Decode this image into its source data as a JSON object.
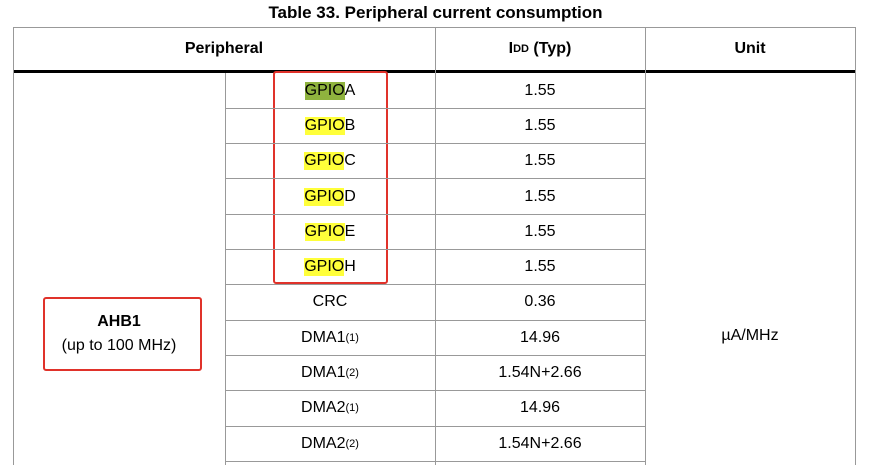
{
  "title": "Table 33. Peripheral current consumption",
  "header": {
    "peripheral": "Peripheral",
    "idd": {
      "main": "I",
      "sub": "DD",
      "rest": " (Typ)"
    },
    "unit": "Unit"
  },
  "group": {
    "name": "AHB1",
    "note": "(up to 100 MHz)"
  },
  "unit": "µA/MHz",
  "rows": [
    {
      "highlight": "GPIO",
      "text": "A",
      "value": "1.55"
    },
    {
      "highlight": "GPIO",
      "text": "B",
      "value": "1.55"
    },
    {
      "highlight": "GPIO",
      "text": "C",
      "value": "1.55"
    },
    {
      "highlight": "GPIO",
      "text": "D",
      "value": "1.55"
    },
    {
      "highlight": "GPIO",
      "text": "E",
      "value": "1.55"
    },
    {
      "highlight": "GPIO",
      "text": "H",
      "value": "1.55"
    },
    {
      "text": "CRC",
      "value": "0.36"
    },
    {
      "text": "DMA1",
      "note": "(1)",
      "value": "14.96"
    },
    {
      "text": "DMA1",
      "note": "(2)",
      "value": "1.54N+2.66"
    },
    {
      "text": "DMA2",
      "note": "(1)",
      "value": "14.96"
    },
    {
      "text": "DMA2",
      "note": "(2)",
      "value": "1.54N+2.66"
    }
  ]
}
